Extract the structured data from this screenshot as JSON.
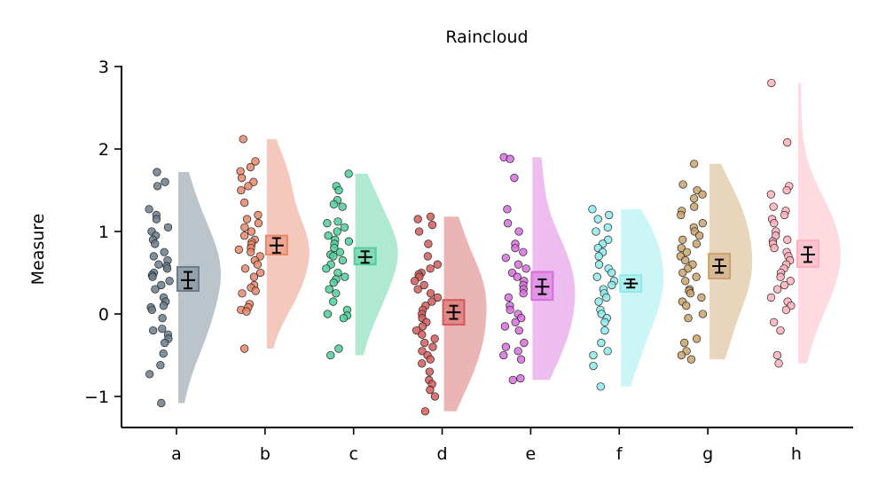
{
  "chart_data": {
    "type": "raincloud",
    "title": "Raincloud",
    "xlabel": "",
    "ylabel": "Measure",
    "ylim": [
      -1.4,
      3.0
    ],
    "yticks": [
      -1,
      0,
      1,
      2,
      3
    ],
    "ytick_labels": [
      "−1",
      "0",
      "1",
      "2",
      "3"
    ],
    "grid": false,
    "categories": [
      "a",
      "b",
      "c",
      "d",
      "e",
      "f",
      "g",
      "h"
    ],
    "colors": [
      "#6b7d8c",
      "#e8866a",
      "#4fcf9b",
      "#d45a5a",
      "#d76ddc",
      "#8eeaea",
      "#c9a26b",
      "#ffb0bc"
    ],
    "series": [
      {
        "name": "a",
        "mean": 0.41,
        "ci": [
          0.31,
          0.51
        ],
        "box": [
          0.28,
          0.57
        ],
        "range": [
          -1.08,
          1.72
        ],
        "points": [
          1.72,
          1.6,
          1.55,
          1.27,
          1.2,
          1.15,
          1.05,
          1.0,
          0.95,
          0.9,
          0.85,
          0.75,
          0.7,
          0.65,
          0.6,
          0.58,
          0.55,
          0.5,
          0.47,
          0.45,
          0.4,
          0.35,
          0.3,
          0.2,
          0.15,
          0.1,
          0.08,
          0.05,
          -0.05,
          -0.18,
          -0.2,
          -0.25,
          -0.3,
          -0.35,
          -0.48,
          -0.62,
          -0.73,
          -1.08
        ]
      },
      {
        "name": "b",
        "mean": 0.83,
        "ci": [
          0.74,
          0.92
        ],
        "box": [
          0.72,
          0.95
        ],
        "range": [
          -0.42,
          2.12
        ],
        "points": [
          2.12,
          1.85,
          1.78,
          1.73,
          1.65,
          1.6,
          1.55,
          1.5,
          1.35,
          1.2,
          1.15,
          1.1,
          1.05,
          1.0,
          0.95,
          0.9,
          0.87,
          0.84,
          0.8,
          0.78,
          0.75,
          0.7,
          0.65,
          0.6,
          0.55,
          0.5,
          0.45,
          0.35,
          0.32,
          0.28,
          0.25,
          0.12,
          0.08,
          0.05,
          0.03,
          -0.42
        ]
      },
      {
        "name": "c",
        "mean": 0.69,
        "ci": [
          0.62,
          0.76
        ],
        "box": [
          0.6,
          0.8
        ],
        "range": [
          -0.5,
          1.7
        ],
        "points": [
          1.7,
          1.55,
          1.5,
          1.38,
          1.33,
          1.3,
          1.12,
          1.1,
          1.05,
          1.0,
          0.95,
          0.9,
          0.88,
          0.85,
          0.8,
          0.75,
          0.72,
          0.7,
          0.65,
          0.6,
          0.55,
          0.5,
          0.45,
          0.42,
          0.38,
          0.3,
          0.25,
          0.15,
          0.05,
          0.0,
          -0.02,
          -0.05,
          -0.42,
          -0.5
        ]
      },
      {
        "name": "d",
        "mean": 0.02,
        "ci": [
          -0.06,
          0.1
        ],
        "box": [
          -0.13,
          0.17
        ],
        "range": [
          -1.18,
          1.18
        ],
        "points": [
          1.18,
          1.15,
          1.08,
          1.0,
          0.85,
          0.7,
          0.6,
          0.55,
          0.5,
          0.48,
          0.45,
          0.4,
          0.35,
          0.3,
          0.25,
          0.2,
          0.15,
          0.1,
          0.05,
          0.0,
          -0.05,
          -0.1,
          -0.15,
          -0.2,
          -0.25,
          -0.3,
          -0.35,
          -0.4,
          -0.45,
          -0.5,
          -0.55,
          -0.6,
          -0.7,
          -0.8,
          -0.85,
          -0.92,
          -1.0,
          -1.18
        ]
      },
      {
        "name": "e",
        "mean": 0.33,
        "ci": [
          0.24,
          0.42
        ],
        "box": [
          0.17,
          0.51
        ],
        "range": [
          -0.8,
          1.9
        ],
        "points": [
          1.9,
          1.88,
          1.65,
          1.27,
          1.1,
          1.0,
          0.85,
          0.8,
          0.75,
          0.68,
          0.6,
          0.55,
          0.5,
          0.45,
          0.4,
          0.35,
          0.3,
          0.25,
          0.2,
          0.1,
          0.05,
          0.0,
          -0.05,
          -0.1,
          -0.15,
          -0.2,
          -0.35,
          -0.4,
          -0.45,
          -0.5,
          -0.55,
          -0.78,
          -0.8
        ]
      },
      {
        "name": "f",
        "mean": 0.37,
        "ci": [
          0.32,
          0.42
        ],
        "box": [
          0.27,
          0.47
        ],
        "range": [
          -0.88,
          1.27
        ],
        "points": [
          1.27,
          1.2,
          1.15,
          1.05,
          1.0,
          0.9,
          0.85,
          0.8,
          0.75,
          0.7,
          0.6,
          0.55,
          0.5,
          0.45,
          0.4,
          0.35,
          0.3,
          0.25,
          0.2,
          0.15,
          0.05,
          0.0,
          -0.05,
          -0.1,
          -0.2,
          -0.35,
          -0.45,
          -0.5,
          -0.63,
          -0.88
        ]
      },
      {
        "name": "g",
        "mean": 0.58,
        "ci": [
          0.5,
          0.66
        ],
        "box": [
          0.43,
          0.73
        ],
        "range": [
          -0.55,
          1.82
        ],
        "points": [
          1.82,
          1.57,
          1.5,
          1.45,
          1.4,
          1.3,
          1.25,
          1.2,
          1.1,
          1.05,
          1.0,
          0.95,
          0.9,
          0.85,
          0.8,
          0.75,
          0.7,
          0.65,
          0.6,
          0.55,
          0.5,
          0.45,
          0.4,
          0.3,
          0.28,
          0.25,
          0.2,
          0.15,
          0.1,
          0.0,
          -0.05,
          -0.3,
          -0.35,
          -0.45,
          -0.5,
          -0.55
        ]
      },
      {
        "name": "h",
        "mean": 0.72,
        "ci": [
          0.63,
          0.81
        ],
        "box": [
          0.57,
          0.89
        ],
        "range": [
          -0.6,
          2.8
        ],
        "points": [
          2.8,
          2.08,
          1.55,
          1.5,
          1.45,
          1.3,
          1.25,
          1.2,
          1.15,
          1.1,
          1.0,
          0.95,
          0.9,
          0.88,
          0.85,
          0.8,
          0.75,
          0.7,
          0.65,
          0.6,
          0.55,
          0.5,
          0.45,
          0.4,
          0.35,
          0.3,
          0.2,
          0.15,
          0.1,
          0.05,
          -0.1,
          -0.2,
          -0.5,
          -0.6
        ]
      }
    ]
  }
}
